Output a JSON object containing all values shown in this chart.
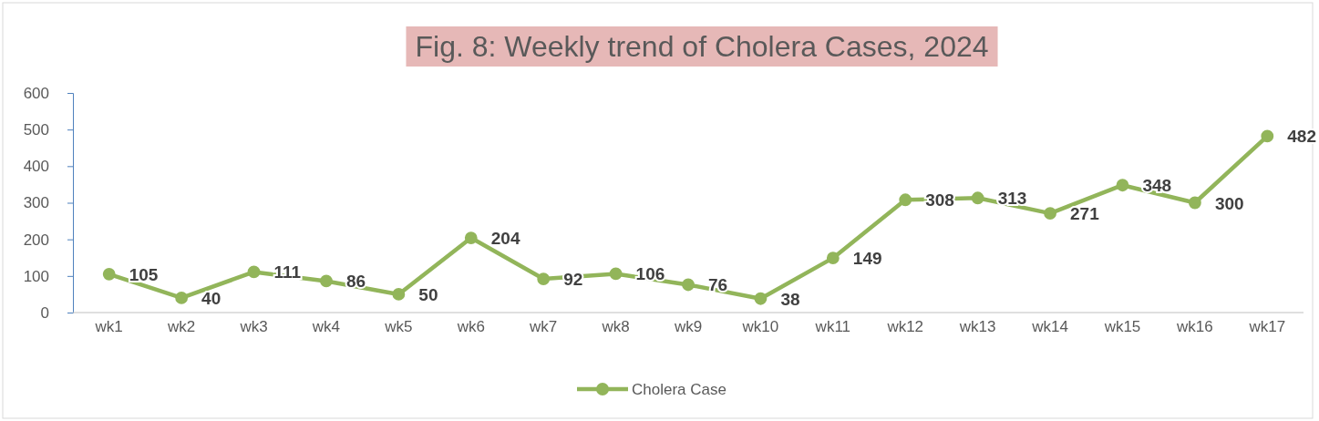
{
  "chart_data": {
    "type": "line",
    "title": "Fig. 8: Weekly trend of Cholera Cases, 2024",
    "categories": [
      "wk1",
      "wk2",
      "wk3",
      "wk4",
      "wk5",
      "wk6",
      "wk7",
      "wk8",
      "wk9",
      "wk10",
      "wk11",
      "wk12",
      "wk13",
      "wk14",
      "wk15",
      "wk16",
      "wk17"
    ],
    "series": [
      {
        "name": "Cholera Case",
        "color": "#92b55a",
        "values": [
          105,
          40,
          111,
          86,
          50,
          204,
          92,
          106,
          76,
          38,
          149,
          308,
          313,
          271,
          348,
          300,
          482
        ]
      }
    ],
    "ylim": [
      0,
      600
    ],
    "yticks": [
      0,
      100,
      200,
      300,
      400,
      500,
      600
    ],
    "grid": false,
    "legend": "bottom",
    "marker": "circle",
    "line_style": "solid",
    "data_labels": true
  }
}
